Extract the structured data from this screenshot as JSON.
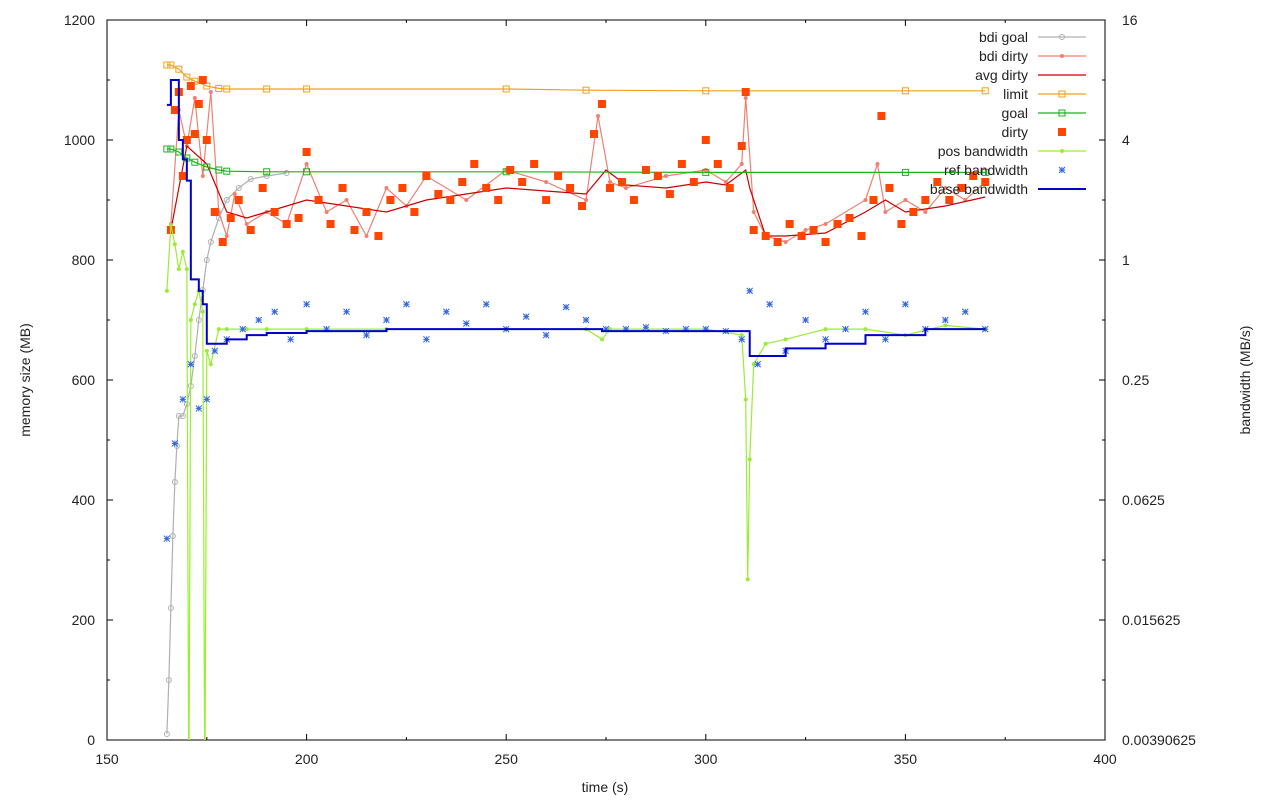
{
  "chart_data": {
    "type": "line",
    "xlabel": "time (s)",
    "ylabel": "memory size (MB)",
    "y2label": "bandwidth (MB/s)",
    "xlim": [
      150,
      400
    ],
    "ylim": [
      0,
      1200
    ],
    "y2_scale": "log2",
    "y2lim": [
      0.00390625,
      16
    ],
    "x_ticks": [
      "150",
      "200",
      "250",
      "300",
      "350",
      "400"
    ],
    "y_ticks": [
      "0",
      "200",
      "400",
      "600",
      "800",
      "1000",
      "1200"
    ],
    "y2_ticks": [
      "0.00390625",
      "0.015625",
      "0.0625",
      "0.25",
      "1",
      "4",
      "16"
    ],
    "y2_tick_values": [
      0.00390625,
      0.015625,
      0.0625,
      0.25,
      1,
      4,
      16
    ],
    "legend_position": "top-right",
    "series": [
      {
        "name": "bdi goal",
        "color": "#b0b0b0",
        "style": "line+open-circle",
        "x": [
          165,
          165.5,
          166,
          166.5,
          167,
          167.5,
          168,
          169,
          170,
          171,
          172,
          173,
          174,
          175,
          176,
          178,
          180,
          183,
          186,
          190,
          195
        ],
        "y": [
          10,
          100,
          220,
          340,
          430,
          490,
          540,
          540,
          560,
          590,
          640,
          700,
          750,
          800,
          830,
          870,
          900,
          920,
          935,
          940,
          945
        ]
      },
      {
        "name": "bdi dirty",
        "color": "#f08070",
        "style": "line+dot",
        "x": [
          166,
          168,
          170,
          172,
          174,
          176,
          178,
          180,
          182,
          185,
          190,
          195,
          200,
          205,
          210,
          215,
          220,
          225,
          230,
          240,
          250,
          260,
          270,
          273,
          276,
          280,
          290,
          300,
          305,
          309,
          310,
          312,
          315,
          320,
          325,
          330,
          340,
          343,
          345,
          350,
          355,
          360,
          365,
          370
        ],
        "y": [
          860,
          1050,
          990,
          1070,
          940,
          1080,
          880,
          840,
          910,
          860,
          880,
          860,
          960,
          880,
          900,
          840,
          920,
          890,
          940,
          900,
          950,
          930,
          900,
          1040,
          930,
          920,
          940,
          950,
          930,
          960,
          1070,
          880,
          840,
          830,
          850,
          860,
          900,
          960,
          880,
          900,
          880,
          920,
          900,
          930
        ]
      },
      {
        "name": "avg dirty",
        "color": "#cc0000",
        "style": "line",
        "x": [
          166,
          170,
          175,
          180,
          185,
          190,
          200,
          210,
          220,
          230,
          240,
          250,
          260,
          270,
          275,
          280,
          290,
          300,
          305,
          310,
          311,
          315,
          320,
          330,
          340,
          345,
          350,
          360,
          370
        ],
        "y": [
          850,
          990,
          960,
          880,
          870,
          880,
          900,
          890,
          880,
          900,
          910,
          920,
          915,
          910,
          950,
          925,
          920,
          930,
          925,
          950,
          920,
          840,
          840,
          845,
          880,
          900,
          880,
          890,
          905
        ]
      },
      {
        "name": "limit",
        "color": "#f0a020",
        "style": "line+open-square",
        "x": [
          165,
          166,
          168,
          170,
          172,
          175,
          178,
          180,
          190,
          200,
          250,
          270,
          300,
          350,
          370
        ],
        "y": [
          1125,
          1125,
          1118,
          1105,
          1098,
          1090,
          1086,
          1085,
          1085,
          1085,
          1085,
          1083,
          1082,
          1082,
          1082
        ]
      },
      {
        "name": "goal",
        "color": "#1ab41a",
        "style": "line+open-square",
        "x": [
          165,
          166,
          168,
          170,
          172,
          175,
          178,
          180,
          190,
          200,
          250,
          300,
          350,
          370
        ],
        "y": [
          985,
          985,
          980,
          970,
          963,
          955,
          950,
          948,
          947,
          947,
          947,
          946,
          946,
          946
        ]
      },
      {
        "name": "dirty",
        "color": "#ff4500",
        "style": "filled-square",
        "x": [
          166,
          167,
          168,
          169,
          170,
          171,
          172,
          173,
          174,
          175,
          177,
          179,
          181,
          183,
          186,
          189,
          192,
          195,
          198,
          200,
          203,
          206,
          209,
          212,
          215,
          218,
          221,
          224,
          227,
          230,
          233,
          236,
          239,
          242,
          245,
          248,
          251,
          254,
          257,
          260,
          263,
          266,
          269,
          272,
          274,
          276,
          279,
          282,
          285,
          288,
          291,
          294,
          297,
          300,
          303,
          306,
          309,
          310,
          312,
          315,
          318,
          321,
          324,
          327,
          330,
          333,
          336,
          339,
          342,
          344,
          346,
          349,
          352,
          355,
          358,
          361,
          364,
          367,
          370
        ],
        "y": [
          850,
          1050,
          1080,
          940,
          1000,
          1090,
          1010,
          1060,
          1100,
          1000,
          880,
          830,
          870,
          900,
          850,
          920,
          880,
          860,
          870,
          980,
          900,
          860,
          920,
          850,
          880,
          840,
          900,
          920,
          880,
          940,
          910,
          900,
          930,
          960,
          920,
          900,
          950,
          930,
          960,
          900,
          940,
          920,
          890,
          1010,
          1060,
          920,
          930,
          900,
          950,
          940,
          910,
          960,
          930,
          1000,
          960,
          920,
          990,
          1080,
          850,
          840,
          830,
          860,
          840,
          850,
          830,
          860,
          870,
          840,
          900,
          1040,
          920,
          860,
          880,
          900,
          930,
          900,
          920,
          940,
          930
        ]
      },
      {
        "name": "pos bandwidth",
        "color": "#99ee33",
        "style": "line+dot",
        "x": [
          165,
          166,
          167,
          168,
          169,
          170,
          170.5,
          171,
          172,
          173,
          174,
          174.5,
          175,
          176,
          178,
          180,
          185,
          190,
          200,
          220,
          250,
          270,
          274,
          276,
          280,
          300,
          309,
          310,
          310.5,
          311,
          312,
          315,
          320,
          330,
          340,
          350,
          360,
          370
        ],
        "y2": [
          0.7,
          1.5,
          1.2,
          0.9,
          1.1,
          0.9,
          0.002,
          0.5,
          0.6,
          0.7,
          0.55,
          0.002,
          0.35,
          0.3,
          0.45,
          0.45,
          0.45,
          0.45,
          0.45,
          0.45,
          0.45,
          0.45,
          0.4,
          0.45,
          0.45,
          0.45,
          0.42,
          0.2,
          0.025,
          0.1,
          0.3,
          0.38,
          0.4,
          0.45,
          0.45,
          0.42,
          0.47,
          0.45
        ]
      },
      {
        "name": "ref bandwidth",
        "color": "#3366dd",
        "style": "star",
        "x": [
          165,
          167,
          169,
          171,
          173,
          175,
          177,
          180,
          184,
          188,
          192,
          196,
          200,
          205,
          210,
          215,
          220,
          225,
          230,
          235,
          240,
          245,
          250,
          255,
          260,
          265,
          270,
          275,
          280,
          285,
          290,
          295,
          300,
          305,
          309,
          311,
          313,
          316,
          320,
          325,
          330,
          335,
          340,
          345,
          350,
          355,
          360,
          365,
          370
        ],
        "y2": [
          0.04,
          0.12,
          0.2,
          0.3,
          0.18,
          0.2,
          0.35,
          0.4,
          0.45,
          0.5,
          0.55,
          0.4,
          0.6,
          0.45,
          0.55,
          0.42,
          0.5,
          0.6,
          0.4,
          0.55,
          0.48,
          0.6,
          0.45,
          0.52,
          0.42,
          0.58,
          0.5,
          0.45,
          0.45,
          0.46,
          0.44,
          0.45,
          0.45,
          0.44,
          0.4,
          0.7,
          0.3,
          0.6,
          0.35,
          0.5,
          0.4,
          0.45,
          0.55,
          0.4,
          0.6,
          0.45,
          0.5,
          0.55,
          0.45
        ]
      },
      {
        "name": "base bandwidth",
        "color": "#0000cc",
        "style": "step-line",
        "x": [
          165,
          166,
          167,
          168,
          169,
          170,
          171,
          172,
          173,
          174,
          175,
          180,
          185,
          190,
          200,
          220,
          250,
          272,
          274,
          300,
          310,
          311,
          320,
          330,
          340,
          350,
          355,
          370
        ],
        "y2": [
          6,
          8,
          8,
          4,
          3.2,
          2.5,
          0.8,
          0.8,
          0.7,
          0.6,
          0.38,
          0.4,
          0.42,
          0.43,
          0.44,
          0.45,
          0.45,
          0.45,
          0.44,
          0.44,
          0.44,
          0.33,
          0.36,
          0.38,
          0.42,
          0.42,
          0.45,
          0.45
        ]
      }
    ]
  }
}
